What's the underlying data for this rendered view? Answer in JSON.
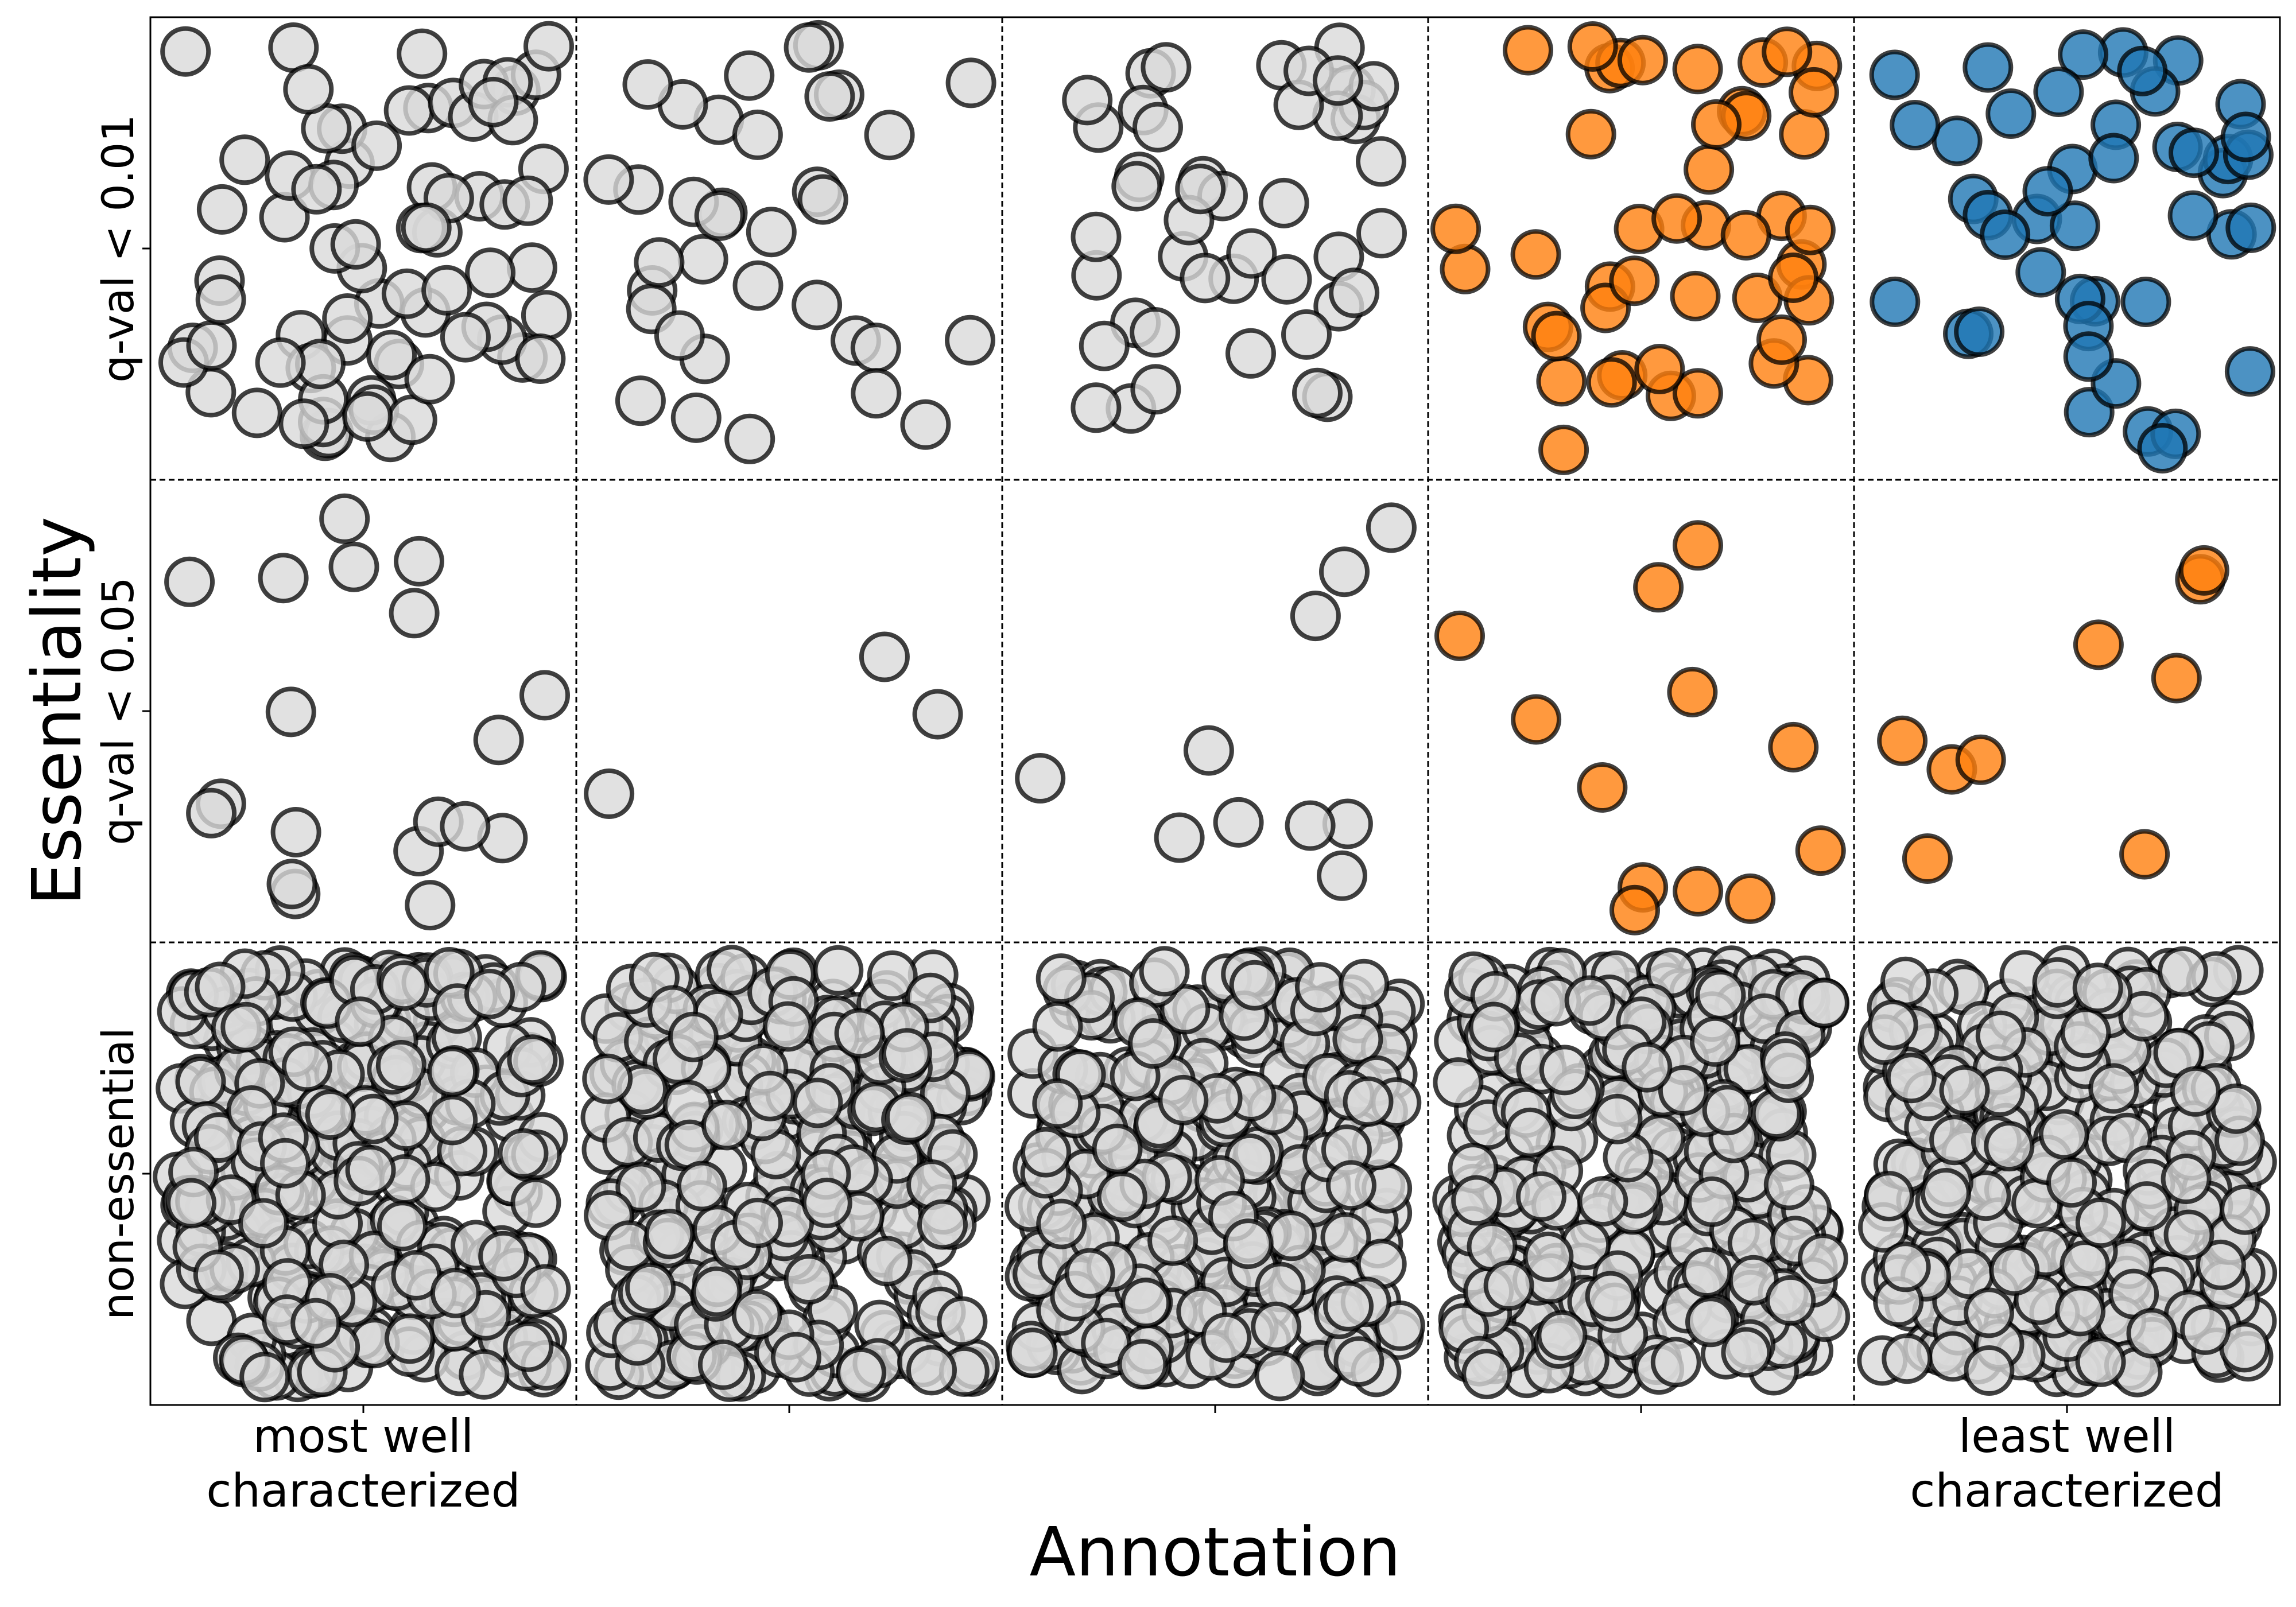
{
  "chart_data": {
    "type": "scatter",
    "title": "",
    "xlabel": "Annotation",
    "ylabel": "Essentiality",
    "x_tick_labels": [
      "most well\ncharacterized",
      "",
      "",
      "",
      "least well\ncharacterized"
    ],
    "y_tick_labels": [
      "non-essential",
      "q-val < 0.05",
      "q-val < 0.01"
    ],
    "grid": "dashed cell dividers",
    "legend": "none",
    "colors": {
      "neutral": "#d9d9d9",
      "highlight_orange": "#ff7f0e",
      "highlight_blue": "#1f77b4",
      "marker_edge": "#000000"
    },
    "cells": [
      {
        "essentiality": "q-val < 0.01",
        "annotation_bin": 1,
        "count": 75,
        "color": "neutral"
      },
      {
        "essentiality": "q-val < 0.01",
        "annotation_bin": 2,
        "count": 35,
        "color": "neutral"
      },
      {
        "essentiality": "q-val < 0.01",
        "annotation_bin": 3,
        "count": 45,
        "color": "neutral"
      },
      {
        "essentiality": "q-val < 0.01",
        "annotation_bin": 4,
        "count": 45,
        "color": "highlight_orange"
      },
      {
        "essentiality": "q-val < 0.01",
        "annotation_bin": 5,
        "count": 45,
        "color": "highlight_blue"
      },
      {
        "essentiality": "q-val < 0.05",
        "annotation_bin": 1,
        "count": 19,
        "color": "neutral"
      },
      {
        "essentiality": "q-val < 0.05",
        "annotation_bin": 2,
        "count": 3,
        "color": "neutral"
      },
      {
        "essentiality": "q-val < 0.05",
        "annotation_bin": 3,
        "count": 10,
        "color": "neutral"
      },
      {
        "essentiality": "q-val < 0.05",
        "annotation_bin": 4,
        "count": 12,
        "color": "highlight_orange"
      },
      {
        "essentiality": "q-val < 0.05",
        "annotation_bin": 5,
        "count": 9,
        "color": "highlight_orange"
      },
      {
        "essentiality": "non-essential",
        "annotation_bin": 1,
        "count": 330,
        "color": "neutral"
      },
      {
        "essentiality": "non-essential",
        "annotation_bin": 2,
        "count": 330,
        "color": "neutral"
      },
      {
        "essentiality": "non-essential",
        "annotation_bin": 3,
        "count": 330,
        "color": "neutral"
      },
      {
        "essentiality": "non-essential",
        "annotation_bin": 4,
        "count": 330,
        "color": "neutral"
      },
      {
        "essentiality": "non-essential",
        "annotation_bin": 5,
        "count": 330,
        "color": "neutral"
      }
    ]
  }
}
